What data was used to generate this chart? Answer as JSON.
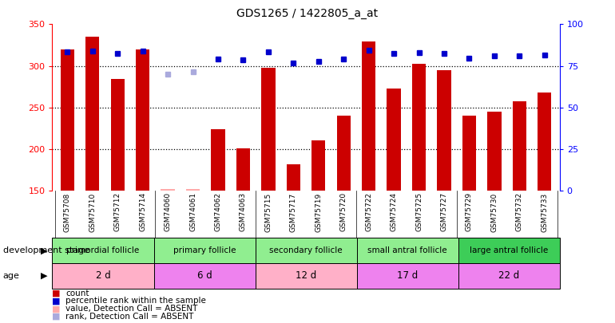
{
  "title": "GDS1265 / 1422805_a_at",
  "samples": [
    "GSM75708",
    "GSM75710",
    "GSM75712",
    "GSM75714",
    "GSM74060",
    "GSM74061",
    "GSM74062",
    "GSM74063",
    "GSM75715",
    "GSM75717",
    "GSM75719",
    "GSM75720",
    "GSM75722",
    "GSM75724",
    "GSM75725",
    "GSM75727",
    "GSM75729",
    "GSM75730",
    "GSM75732",
    "GSM75733"
  ],
  "bar_values": [
    320,
    335,
    284,
    320,
    152,
    152,
    224,
    201,
    298,
    182,
    210,
    240,
    329,
    273,
    302,
    295,
    240,
    245,
    257,
    268
  ],
  "absent_bar": [
    false,
    false,
    false,
    false,
    true,
    true,
    false,
    false,
    false,
    false,
    false,
    false,
    false,
    false,
    false,
    false,
    false,
    false,
    false,
    false
  ],
  "dot_values": [
    317,
    318,
    315,
    318,
    290,
    293,
    308,
    307,
    317,
    303,
    305,
    308,
    319,
    315,
    316,
    315,
    309,
    312,
    312,
    313
  ],
  "absent_dot": [
    false,
    false,
    false,
    false,
    true,
    true,
    false,
    false,
    false,
    false,
    false,
    false,
    false,
    false,
    false,
    false,
    false,
    false,
    false,
    false
  ],
  "ylim_left": [
    150,
    350
  ],
  "ylim_right": [
    0,
    100
  ],
  "yticks_left": [
    150,
    200,
    250,
    300,
    350
  ],
  "yticks_right": [
    0,
    25,
    50,
    75,
    100
  ],
  "groups": [
    {
      "label": "primordial follicle",
      "age": "2 d",
      "dev_color": "#90ee90",
      "age_color": "#ffb0c8",
      "start": 0,
      "end": 4
    },
    {
      "label": "primary follicle",
      "age": "6 d",
      "dev_color": "#90ee90",
      "age_color": "#ee82ee",
      "start": 4,
      "end": 8
    },
    {
      "label": "secondary follicle",
      "age": "12 d",
      "dev_color": "#90ee90",
      "age_color": "#ffb0c8",
      "start": 8,
      "end": 12
    },
    {
      "label": "small antral follicle",
      "age": "17 d",
      "dev_color": "#90ee90",
      "age_color": "#ee82ee",
      "start": 12,
      "end": 16
    },
    {
      "label": "large antral follicle",
      "age": "22 d",
      "dev_color": "#3dcd58",
      "age_color": "#ee82ee",
      "start": 16,
      "end": 20
    }
  ],
  "bar_color": "#cc0000",
  "absent_bar_color": "#ffaaaa",
  "dot_color": "#0000cc",
  "absent_dot_color": "#aaaadd",
  "bg_xtick": "#d8d8d8",
  "dev_stage_label": "development stage",
  "age_label": "age",
  "legend": [
    {
      "label": "count",
      "color": "#cc0000"
    },
    {
      "label": "percentile rank within the sample",
      "color": "#0000cc"
    },
    {
      "label": "value, Detection Call = ABSENT",
      "color": "#ffaaaa"
    },
    {
      "label": "rank, Detection Call = ABSENT",
      "color": "#aaaadd"
    }
  ]
}
